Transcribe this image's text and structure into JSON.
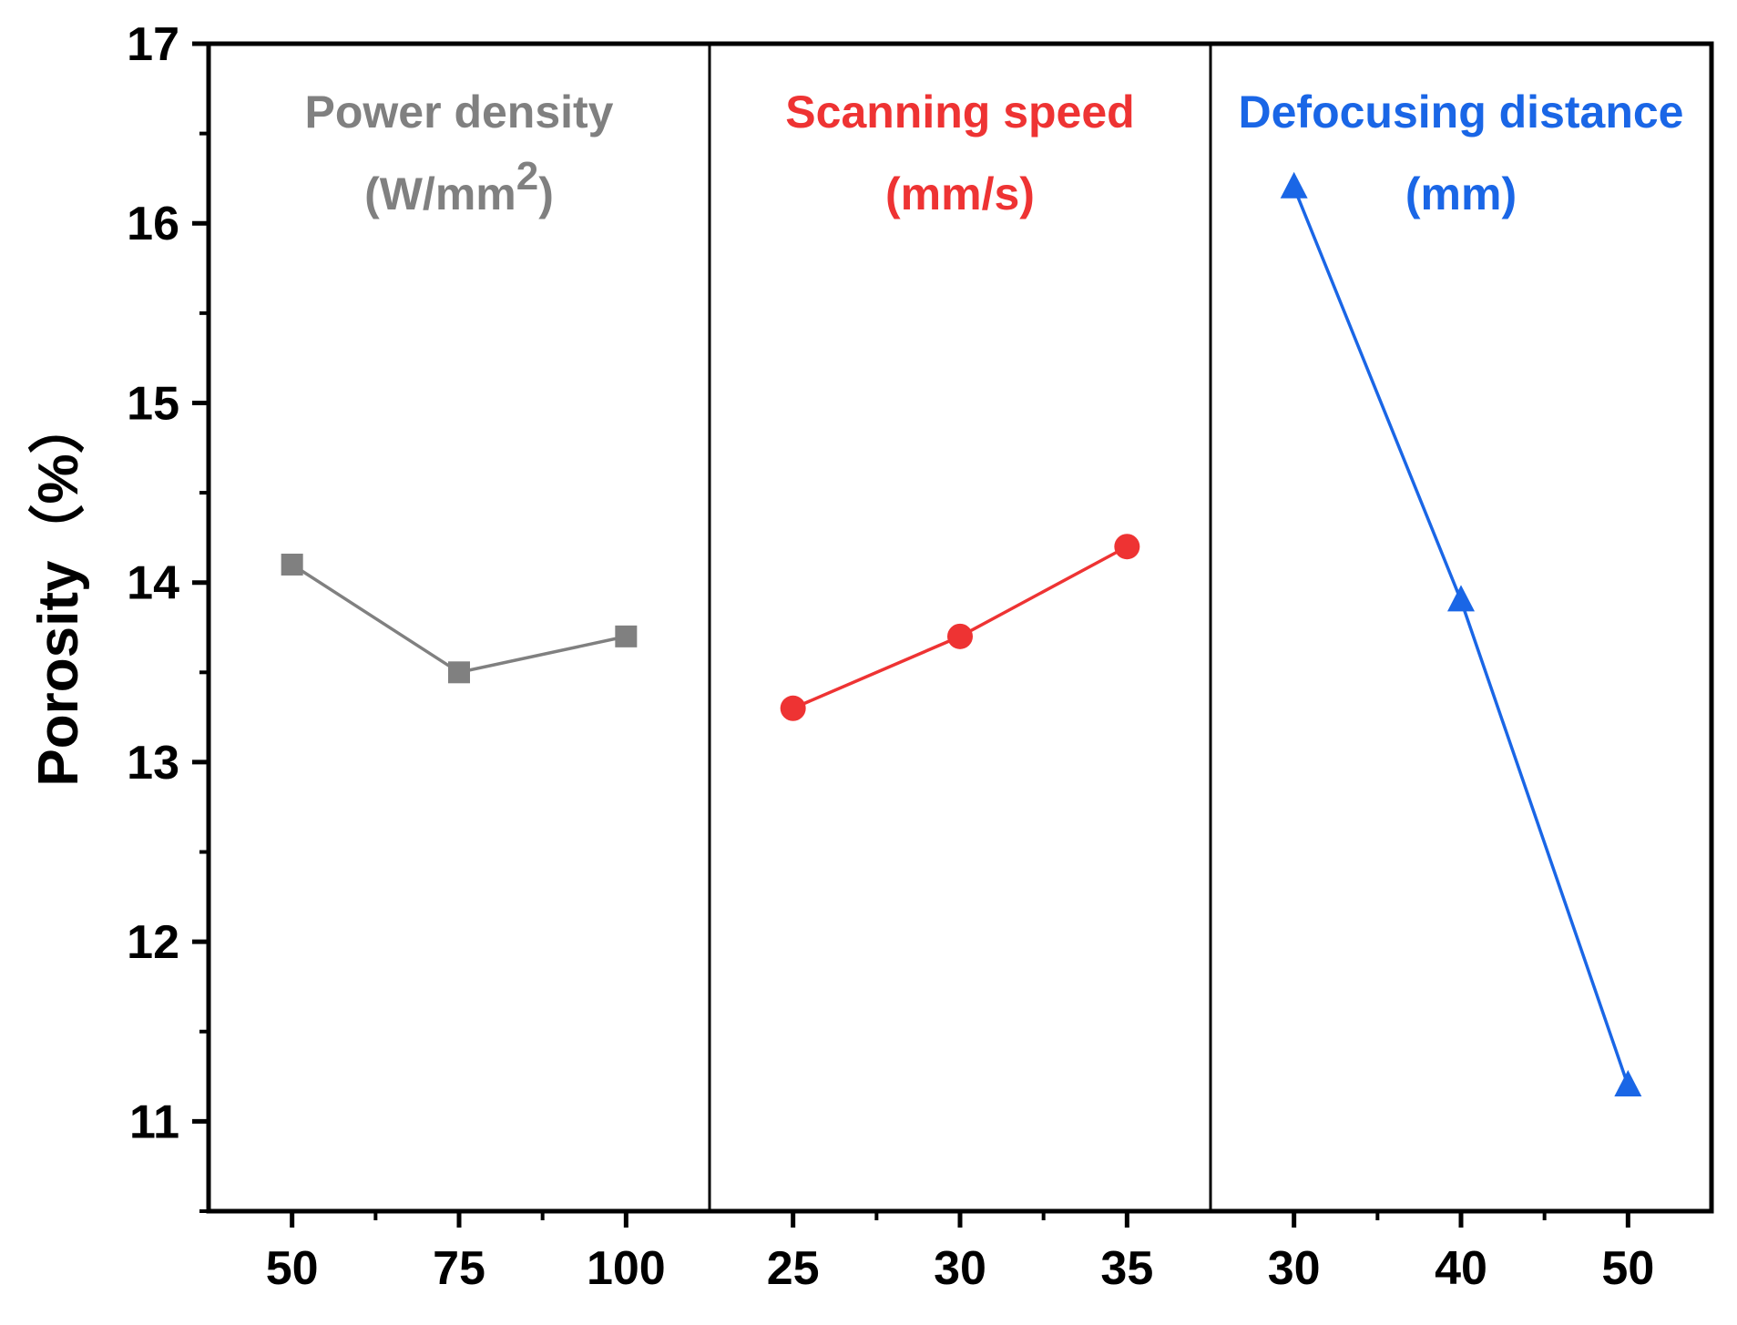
{
  "chart_data": {
    "type": "line",
    "ylabel": "Porosity（%）",
    "ylim": [
      10.5,
      17
    ],
    "yticks": [
      "11",
      "12",
      "13",
      "14",
      "15",
      "16",
      "17"
    ],
    "panels": [
      {
        "title_line1": "Power density",
        "title_line2_pre": "(W/mm",
        "title_line2_sup": "2",
        "title_line2_post": ")",
        "color": "#808080",
        "marker": "square",
        "x": [
          "50",
          "75",
          "100"
        ],
        "values": [
          14.1,
          13.5,
          13.7
        ]
      },
      {
        "title_line1": "Scanning speed",
        "title_line2_pre": "(mm/s)",
        "title_line2_sup": "",
        "title_line2_post": "",
        "color": "#ee3333",
        "marker": "circle",
        "x": [
          "25",
          "30",
          "35"
        ],
        "values": [
          13.3,
          13.7,
          14.2
        ]
      },
      {
        "title_line1": "Defocusing distance",
        "title_line2_pre": "(mm)",
        "title_line2_sup": "",
        "title_line2_post": "",
        "color": "#1a66e6",
        "marker": "triangle",
        "x": [
          "30",
          "40",
          "50"
        ],
        "values": [
          16.2,
          13.9,
          11.2
        ]
      }
    ]
  }
}
